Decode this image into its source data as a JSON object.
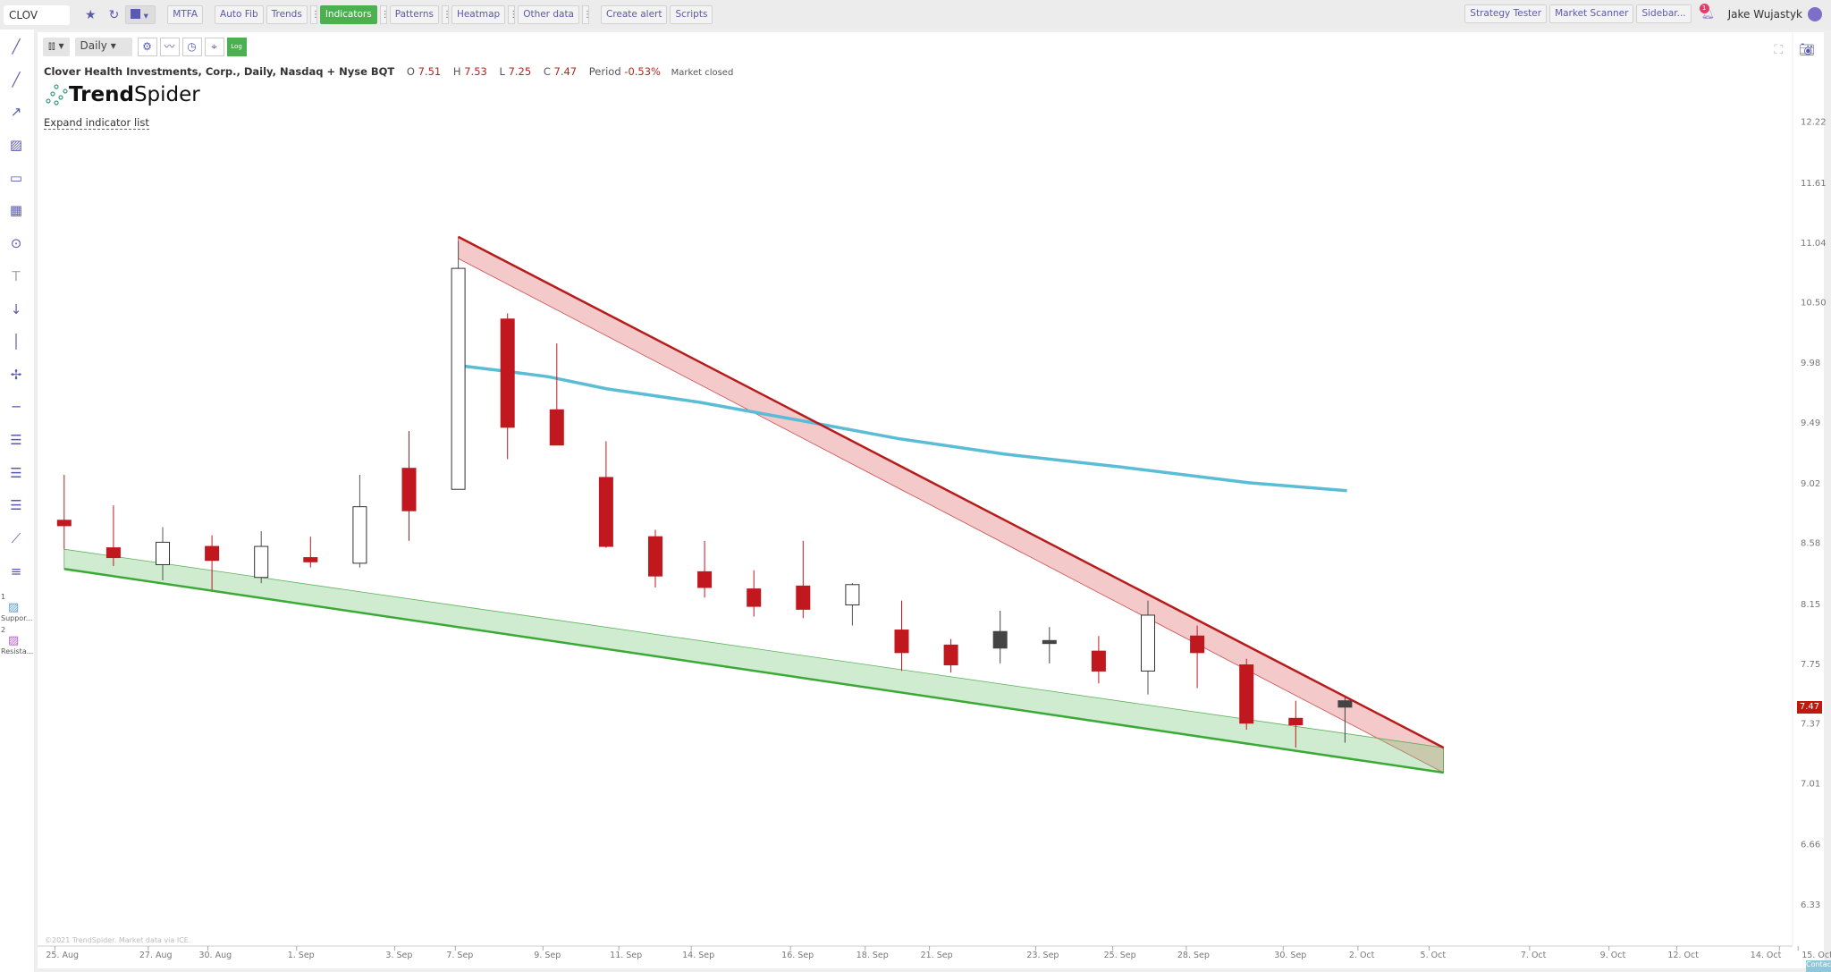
{
  "topbar": {
    "symbol": "CLOV",
    "buttons": {
      "mtfa": "MTFA",
      "auto_fib": "Auto Fib",
      "trends": "Trends",
      "indicators": "Indicators",
      "patterns": "Patterns",
      "heatmap": "Heatmap",
      "other_data": "Other data",
      "create_alert": "Create alert",
      "scripts": "Scripts",
      "strategy_tester": "Strategy Tester",
      "market_scanner": "Market Scanner",
      "sidebar": "Sidebar..."
    },
    "notifications": "1",
    "user": "Jake Wujastyk"
  },
  "chart_toolbar": {
    "timeframe": "Daily",
    "log_label": "Log"
  },
  "info": {
    "title": "Clover Health Investments, Corp., Daily, Nasdaq + Nyse BQT",
    "o_label": "O",
    "o": "7.51",
    "h_label": "H",
    "h": "7.53",
    "l_label": "L",
    "l": "7.25",
    "c_label": "C",
    "c": "7.47",
    "period_label": "Period",
    "period": "-0.53%",
    "status": "Market closed"
  },
  "logo": {
    "bold": "Trend",
    "light": "Spider"
  },
  "expand_link": "Expand indicator list",
  "left_toolbar": {
    "items": [
      {
        "num": "1",
        "label": "Suppor..."
      },
      {
        "num": "2",
        "label": "Resista..."
      }
    ]
  },
  "copyright": "©2021 TrendSpider. Market data via ICE.",
  "contact": "Contact us",
  "current_price": "7.47",
  "colors": {
    "down": "#c0181e",
    "neutral": "#444444",
    "up": "#ffffff",
    "resistance": "#b71c1c",
    "support": "#3aa935",
    "ma": "#5bbcd6",
    "accent": "#5a5ab0"
  },
  "chart_data": {
    "type": "candlestick",
    "price_scale": "log",
    "y_ticks": [
      "12.22",
      "11.61",
      "11.04",
      "10.50",
      "9.98",
      "9.49",
      "9.02",
      "8.58",
      "8.15",
      "7.75",
      "7.37",
      "7.01",
      "6.66",
      "6.33"
    ],
    "x_ticks": [
      "25. Aug",
      "27. Aug",
      "30. Aug",
      "1. Sep",
      "3. Sep",
      "7. Sep",
      "9. Sep",
      "11. Sep",
      "14. Sep",
      "16. Sep",
      "18. Sep",
      "21. Sep",
      "23. Sep",
      "25. Sep",
      "28. Sep",
      "30. Sep",
      "2. Oct",
      "5. Oct",
      "7. Oct",
      "9. Oct",
      "12. Oct",
      "14. Oct",
      "15. Oct"
    ],
    "candles": [
      {
        "o": 8.74,
        "h": 9.08,
        "l": 8.53,
        "c": 8.7
      },
      {
        "o": 8.54,
        "h": 8.85,
        "l": 8.41,
        "c": 8.47
      },
      {
        "o": 8.42,
        "h": 8.69,
        "l": 8.31,
        "c": 8.58
      },
      {
        "o": 8.55,
        "h": 8.63,
        "l": 8.24,
        "c": 8.45
      },
      {
        "o": 8.33,
        "h": 8.66,
        "l": 8.29,
        "c": 8.55
      },
      {
        "o": 8.47,
        "h": 8.62,
        "l": 8.4,
        "c": 8.44
      },
      {
        "o": 8.43,
        "h": 9.08,
        "l": 8.4,
        "c": 8.84
      },
      {
        "o": 9.13,
        "h": 9.42,
        "l": 8.59,
        "c": 8.81
      },
      {
        "o": 8.97,
        "h": 11.05,
        "l": 8.97,
        "c": 10.8
      },
      {
        "o": 10.35,
        "h": 10.4,
        "l": 9.2,
        "c": 9.45
      },
      {
        "o": 9.59,
        "h": 10.14,
        "l": 9.31,
        "c": 9.31
      },
      {
        "o": 9.06,
        "h": 9.34,
        "l": 8.54,
        "c": 8.55
      },
      {
        "o": 8.62,
        "h": 8.67,
        "l": 8.26,
        "c": 8.34
      },
      {
        "o": 8.37,
        "h": 8.59,
        "l": 8.19,
        "c": 8.26
      },
      {
        "o": 8.25,
        "h": 8.38,
        "l": 8.06,
        "c": 8.13
      },
      {
        "o": 8.27,
        "h": 8.59,
        "l": 8.05,
        "c": 8.11
      },
      {
        "o": 8.14,
        "h": 8.29,
        "l": 8.0,
        "c": 8.28
      },
      {
        "o": 7.97,
        "h": 8.17,
        "l": 7.7,
        "c": 7.82
      },
      {
        "o": 7.87,
        "h": 7.91,
        "l": 7.69,
        "c": 7.74
      },
      {
        "o": 7.96,
        "h": 8.1,
        "l": 7.75,
        "c": 7.85,
        "neutral": true
      },
      {
        "o": 7.9,
        "h": 7.99,
        "l": 7.75,
        "c": 7.88,
        "neutral": true
      },
      {
        "o": 7.83,
        "h": 7.93,
        "l": 7.62,
        "c": 7.7
      },
      {
        "o": 7.7,
        "h": 8.17,
        "l": 7.55,
        "c": 8.07
      },
      {
        "o": 7.93,
        "h": 8.0,
        "l": 7.59,
        "c": 7.82
      },
      {
        "o": 7.74,
        "h": 7.78,
        "l": 7.33,
        "c": 7.37
      },
      {
        "o": 7.4,
        "h": 7.51,
        "l": 7.22,
        "c": 7.36
      },
      {
        "o": 7.51,
        "h": 7.53,
        "l": 7.25,
        "c": 7.47,
        "neutral": true
      }
    ],
    "resistance": {
      "upper": [
        [
          8.0,
          11.09
        ],
        [
          28.0,
          7.22
        ]
      ],
      "lower": [
        [
          8.0,
          10.89
        ],
        [
          28.0,
          7.07
        ]
      ]
    },
    "support": {
      "lower": [
        [
          0,
          8.39
        ],
        [
          28.0,
          7.07
        ]
      ],
      "upper": [
        [
          0,
          8.53
        ],
        [
          28.0,
          7.22
        ]
      ]
    },
    "moving_average": [
      [
        8.08,
        9.95
      ],
      [
        8.89,
        9.91
      ],
      [
        9.83,
        9.86
      ],
      [
        11.02,
        9.76
      ],
      [
        12.91,
        9.65
      ],
      [
        15.28,
        9.48
      ],
      [
        16.94,
        9.36
      ],
      [
        19.08,
        9.24
      ],
      [
        21.45,
        9.14
      ],
      [
        24.05,
        9.02
      ],
      [
        26.04,
        8.96
      ]
    ]
  }
}
